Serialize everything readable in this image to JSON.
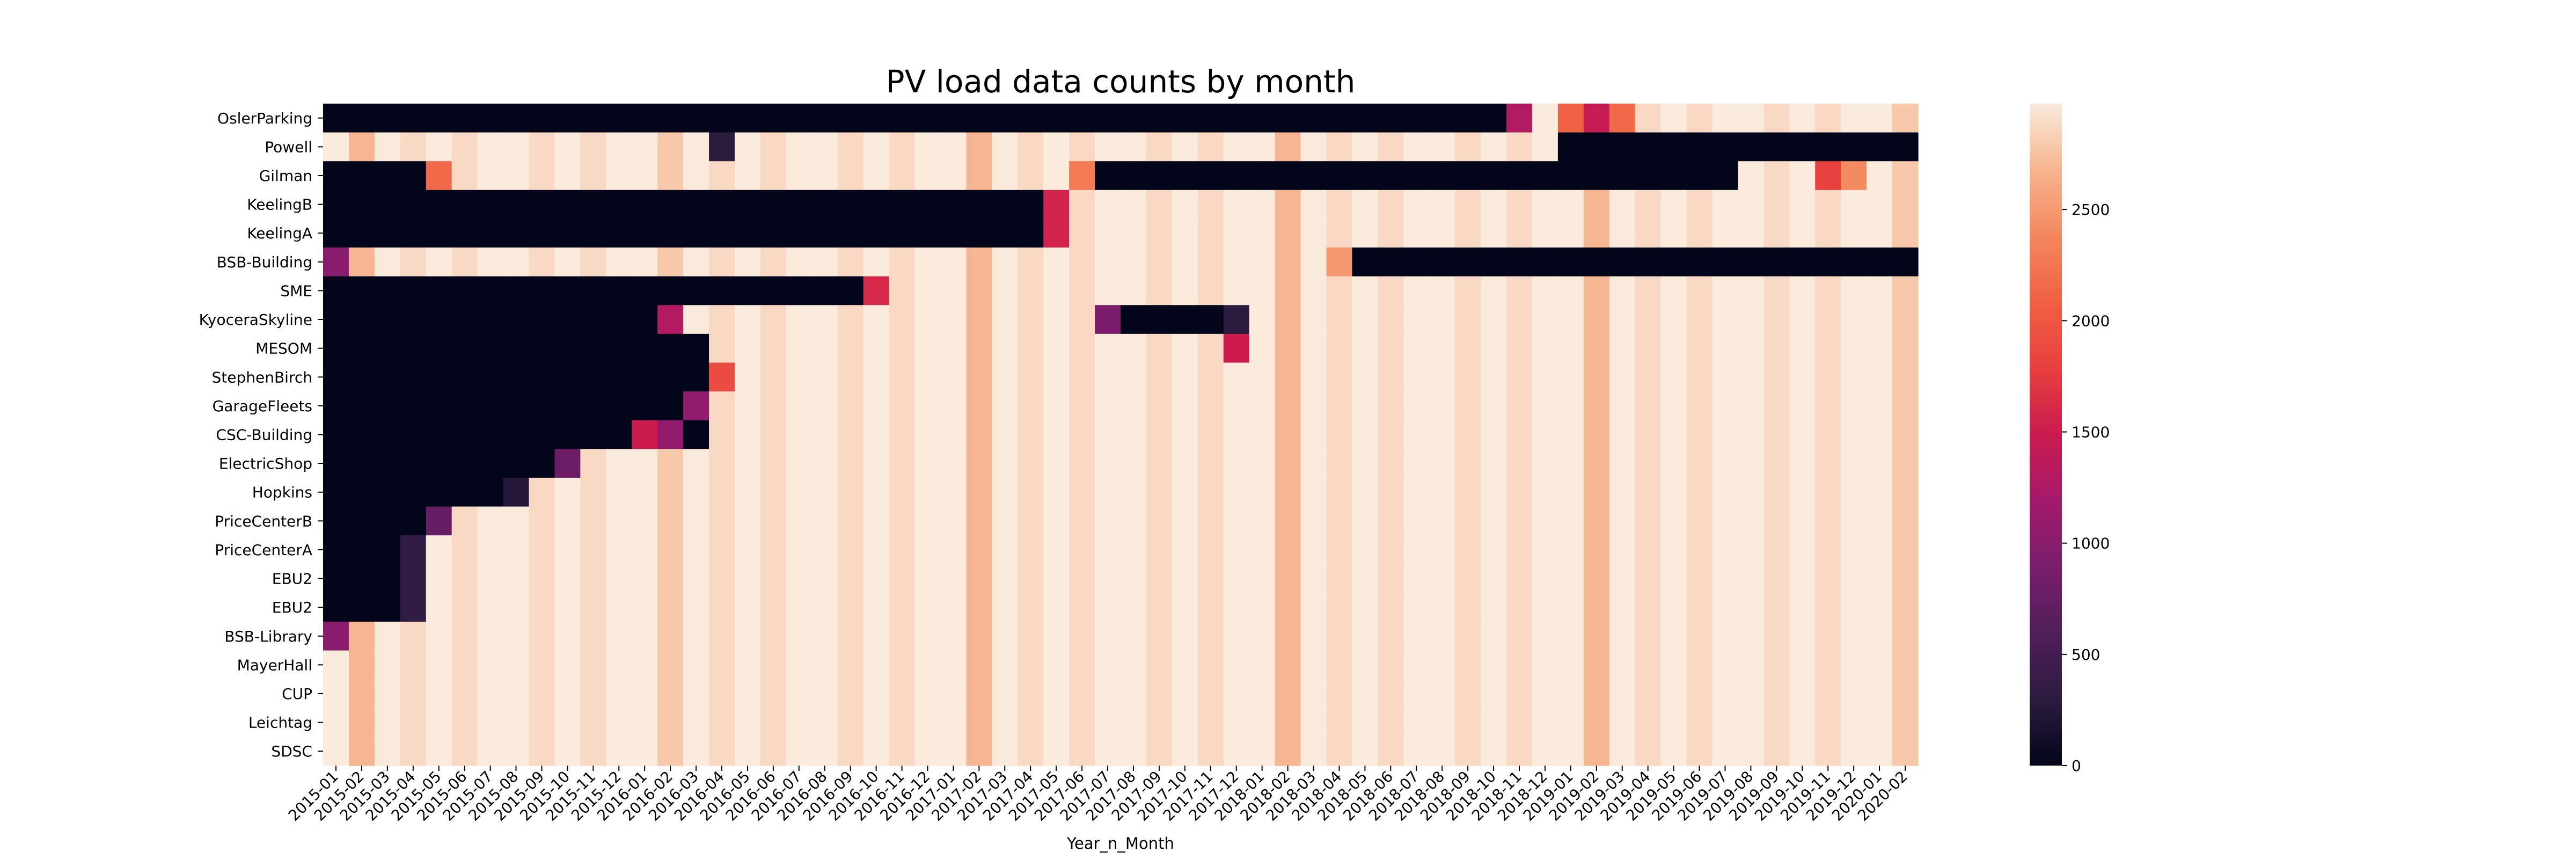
{
  "chart_data": {
    "type": "heatmap",
    "title": "PV load data counts by month",
    "xlabel": "Year_n_Month",
    "ylabel": "",
    "colormap": "rocket",
    "vmin": 0,
    "vmax": 2976,
    "colorbar_ticks": [
      0,
      500,
      1000,
      1500,
      2000,
      2500
    ],
    "x_labels": [
      "2015-01",
      "2015-02",
      "2015-03",
      "2015-04",
      "2015-05",
      "2015-06",
      "2015-07",
      "2015-08",
      "2015-09",
      "2015-10",
      "2015-11",
      "2015-12",
      "2016-01",
      "2016-02",
      "2016-03",
      "2016-04",
      "2016-05",
      "2016-06",
      "2016-07",
      "2016-08",
      "2016-09",
      "2016-10",
      "2016-11",
      "2016-12",
      "2017-01",
      "2017-02",
      "2017-03",
      "2017-04",
      "2017-05",
      "2017-06",
      "2017-07",
      "2017-08",
      "2017-09",
      "2017-10",
      "2017-11",
      "2017-12",
      "2018-01",
      "2018-02",
      "2018-03",
      "2018-04",
      "2018-05",
      "2018-06",
      "2018-07",
      "2018-08",
      "2018-09",
      "2018-10",
      "2018-11",
      "2018-12",
      "2019-01",
      "2019-02",
      "2019-03",
      "2019-04",
      "2019-05",
      "2019-06",
      "2019-07",
      "2019-08",
      "2019-09",
      "2019-10",
      "2019-11",
      "2019-12",
      "2020-01",
      "2020-02"
    ],
    "y_labels": [
      "OslerParking",
      "Powell",
      "Gilman",
      "KeelingB",
      "KeelingA",
      "BSB-Building",
      "SME",
      "KyoceraSkyline",
      "MESOM",
      "StephenBirch",
      "GarageFleets",
      "CSC-Building",
      "ElectricShop",
      "Hopkins",
      "PriceCenterB",
      "PriceCenterA",
      "EBU2",
      "EBU2",
      "BSB-Library",
      "MayerHall",
      "CUP",
      "Leichtag",
      "SDSC"
    ],
    "month_full_values": [
      2976,
      2688,
      2972,
      2880,
      2976,
      2880,
      2976,
      2976,
      2880,
      2976,
      2880,
      2976,
      2976,
      2784,
      2972,
      2880,
      2976,
      2880,
      2976,
      2976,
      2880,
      2976,
      2880,
      2976,
      2976,
      2688,
      2972,
      2880,
      2976,
      2880,
      2976,
      2976,
      2880,
      2976,
      2880,
      2976,
      2976,
      2688,
      2972,
      2880,
      2976,
      2880,
      2976,
      2976,
      2880,
      2976,
      2880,
      2976,
      2976,
      2688,
      2972,
      2880,
      2976,
      2880,
      2976,
      2976,
      2880,
      2976,
      2880,
      2976,
      2976,
      2784
    ],
    "rows": [
      {
        "name": "OslerParking",
        "zero_ranges": [
          [
            0,
            45
          ]
        ],
        "overrides": {
          "46": 1300,
          "48": 2100,
          "49": 1450,
          "50": 2150
        }
      },
      {
        "name": "Powell",
        "zero_ranges": [
          [
            15,
            15
          ],
          [
            48,
            61
          ]
        ],
        "overrides": {
          "14": 2976,
          "15": 300
        }
      },
      {
        "name": "Gilman",
        "zero_ranges": [
          [
            0,
            3
          ],
          [
            30,
            54
          ]
        ],
        "overrides": {
          "4": 2150,
          "29": 2300,
          "58": 1800,
          "59": 2400
        }
      },
      {
        "name": "KeelingB",
        "zero_ranges": [
          [
            0,
            27
          ]
        ],
        "overrides": {
          "28": 1550
        }
      },
      {
        "name": "KeelingA",
        "zero_ranges": [
          [
            0,
            27
          ]
        ],
        "overrides": {
          "28": 1550
        }
      },
      {
        "name": "BSB-Building",
        "zero_ranges": [
          [
            40,
            61
          ]
        ],
        "overrides": {
          "0": 1000,
          "39": 2500
        }
      },
      {
        "name": "SME",
        "zero_ranges": [
          [
            0,
            20
          ]
        ],
        "overrides": {
          "21": 1600
        }
      },
      {
        "name": "KyoceraSkyline",
        "zero_ranges": [
          [
            0,
            12
          ],
          [
            31,
            34
          ]
        ],
        "overrides": {
          "13": 1300,
          "30": 900,
          "35": 300
        }
      },
      {
        "name": "MESOM",
        "zero_ranges": [
          [
            0,
            14
          ]
        ],
        "overrides": {
          "35": 1500
        }
      },
      {
        "name": "StephenBirch",
        "zero_ranges": [
          [
            0,
            14
          ]
        ],
        "overrides": {
          "15": 1900
        }
      },
      {
        "name": "GarageFleets",
        "zero_ranges": [
          [
            0,
            13
          ]
        ],
        "overrides": {
          "14": 1050
        }
      },
      {
        "name": "CSC-Building",
        "zero_ranges": [
          [
            0,
            11
          ],
          [
            14,
            14
          ]
        ],
        "overrides": {
          "12": 1500,
          "13": 1050
        }
      },
      {
        "name": "ElectricShop",
        "zero_ranges": [
          [
            0,
            8
          ]
        ],
        "overrides": {
          "9": 800
        }
      },
      {
        "name": "Hopkins",
        "zero_ranges": [
          [
            0,
            6
          ]
        ],
        "overrides": {
          "7": 250
        }
      },
      {
        "name": "PriceCenterB",
        "zero_ranges": [
          [
            0,
            3
          ]
        ],
        "overrides": {
          "4": 750
        }
      },
      {
        "name": "PriceCenterA",
        "zero_ranges": [
          [
            0,
            2
          ]
        ],
        "overrides": {
          "3": 350
        }
      },
      {
        "name": "EBU2",
        "zero_ranges": [
          [
            0,
            2
          ]
        ],
        "overrides": {
          "3": 350
        }
      },
      {
        "name": "EBU2",
        "zero_ranges": [
          [
            0,
            2
          ]
        ],
        "overrides": {
          "3": 350
        }
      },
      {
        "name": "BSB-Library",
        "zero_ranges": [],
        "overrides": {
          "0": 1000
        }
      },
      {
        "name": "MayerHall",
        "zero_ranges": [],
        "overrides": {}
      },
      {
        "name": "CUP",
        "zero_ranges": [],
        "overrides": {}
      },
      {
        "name": "Leichtag",
        "zero_ranges": [],
        "overrides": {}
      },
      {
        "name": "SDSC",
        "zero_ranges": [],
        "overrides": {}
      }
    ]
  }
}
